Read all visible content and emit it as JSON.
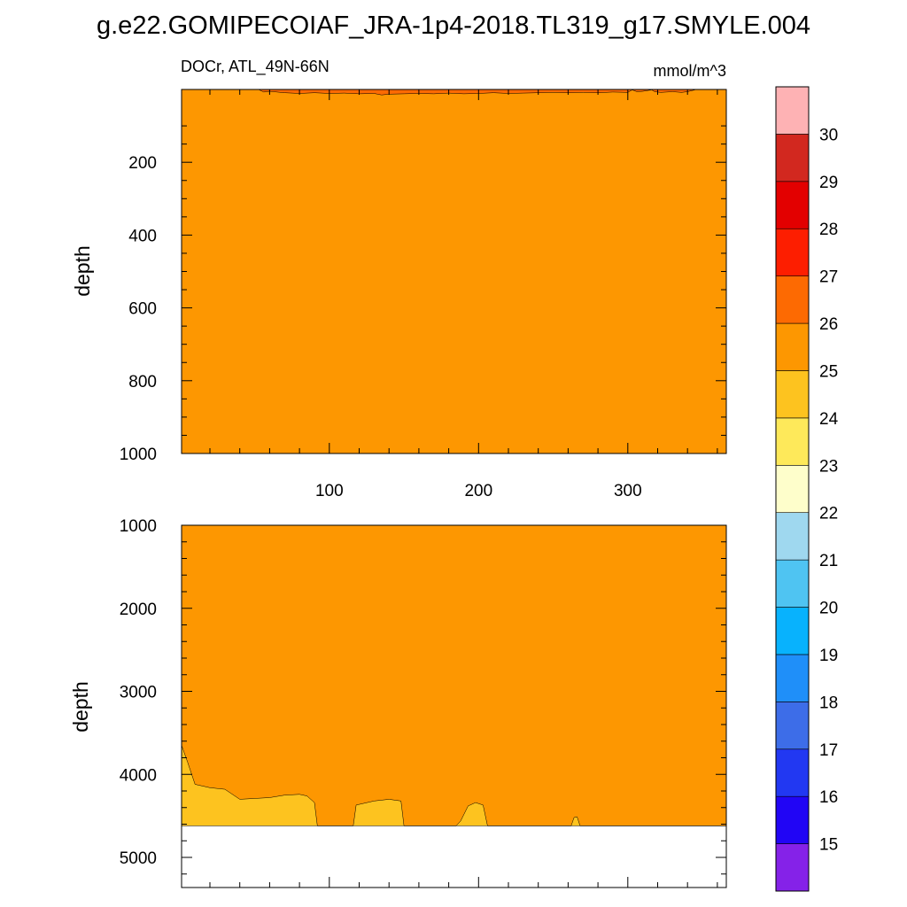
{
  "figure": {
    "title": "g.e22.GOMIPECOIAF_JRA-1p4-2018.TL319_g17.SMYLE.004"
  },
  "chart_data": {
    "type": "heatmap",
    "variable": "DOCr",
    "region": "ATL_49N-66N",
    "left_label": "DOCr, ATL_49N-66N",
    "units": "mmol/m^3",
    "panels": [
      {
        "id": "upper",
        "ylabel": "depth",
        "ylim": [
          0,
          1000
        ],
        "y_reversed": true,
        "yticks": [
          200,
          400,
          600,
          800,
          1000
        ],
        "xlim": [
          1,
          366
        ],
        "xticks": [
          100,
          200,
          300
        ],
        "background_class": "25-26",
        "surface_layer": {
          "class": "26-27",
          "boundary": [
            [
              53,
              1
            ],
            [
              56,
              7
            ],
            [
              60,
              5
            ],
            [
              70,
              9
            ],
            [
              80,
              11
            ],
            [
              90,
              9
            ],
            [
              100,
              11
            ],
            [
              110,
              10
            ],
            [
              120,
              12
            ],
            [
              130,
              11
            ],
            [
              135,
              15
            ],
            [
              140,
              13
            ],
            [
              150,
              12
            ],
            [
              160,
              11
            ],
            [
              170,
              12
            ],
            [
              180,
              10
            ],
            [
              190,
              12
            ],
            [
              200,
              11
            ],
            [
              210,
              9
            ],
            [
              220,
              11
            ],
            [
              230,
              10
            ],
            [
              240,
              9
            ],
            [
              250,
              8
            ],
            [
              260,
              9
            ],
            [
              270,
              8
            ],
            [
              280,
              9
            ],
            [
              290,
              7
            ],
            [
              300,
              8
            ],
            [
              303,
              1
            ],
            [
              306,
              6
            ],
            [
              310,
              5
            ],
            [
              316,
              1
            ],
            [
              318,
              6
            ],
            [
              322,
              8
            ],
            [
              330,
              6
            ],
            [
              336,
              8
            ],
            [
              340,
              6
            ],
            [
              345,
              1
            ]
          ]
        }
      },
      {
        "id": "lower",
        "ylabel": "depth",
        "ylim": [
          1000,
          5500
        ],
        "y_reversed": true,
        "yticks": [
          1000,
          2000,
          3000,
          4000,
          5000
        ],
        "xlim": [
          1,
          366
        ],
        "xticks": [
          100,
          200,
          300
        ],
        "background_class": "25-26",
        "bottom_depth": 4620,
        "bottom_layer": {
          "class": "24-25",
          "boundary": [
            [
              1,
              3650
            ],
            [
              5,
              3850
            ],
            [
              10,
              4120
            ],
            [
              20,
              4160
            ],
            [
              30,
              4180
            ],
            [
              40,
              4300
            ],
            [
              60,
              4280
            ],
            [
              70,
              4250
            ],
            [
              80,
              4240
            ],
            [
              85,
              4260
            ],
            [
              90,
              4340
            ],
            [
              92,
              4620
            ],
            [
              116,
              4620
            ],
            [
              118,
              4370
            ],
            [
              130,
              4320
            ],
            [
              140,
              4300
            ],
            [
              148,
              4320
            ],
            [
              150,
              4620
            ],
            [
              185,
              4620
            ],
            [
              188,
              4560
            ],
            [
              193,
              4380
            ],
            [
              198,
              4340
            ],
            [
              203,
              4370
            ],
            [
              206,
              4620
            ],
            [
              262,
              4620
            ],
            [
              264,
              4520
            ],
            [
              266,
              4510
            ],
            [
              268,
              4620
            ],
            [
              366,
              4620
            ]
          ]
        }
      }
    ],
    "colorbar": {
      "labels": [
        15,
        16,
        17,
        18,
        19,
        20,
        21,
        22,
        23,
        24,
        25,
        26,
        27,
        28,
        29,
        30
      ],
      "colors": [
        "#8522e8",
        "#2105f5",
        "#2238f2",
        "#3d6de8",
        "#1f8ff9",
        "#08b2fd",
        "#4fc4f2",
        "#9fd8ef",
        "#fefecb",
        "#fee95a",
        "#fdc31f",
        "#fd9701",
        "#fd6a02",
        "#fd1e00",
        "#e30000",
        "#d2281f",
        "#feb2b4"
      ]
    },
    "class_colors": {
      "24-25": "#fdc31f",
      "25-26": "#fd9701",
      "26-27": "#fd6a02"
    }
  }
}
